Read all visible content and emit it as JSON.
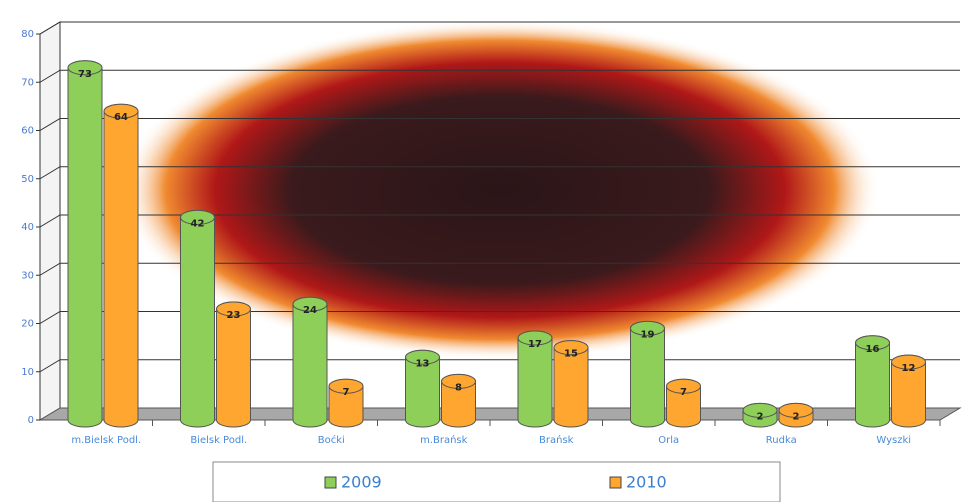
{
  "chart_data": {
    "type": "bar",
    "categories": [
      "m.Bielsk Podl.",
      "Bielsk Podl.",
      "Boćki",
      "m.Brańsk",
      "Brańsk",
      "Orla",
      "Rudka",
      "Wyszki"
    ],
    "series": [
      {
        "name": "2009",
        "color": "#8ecf5a",
        "values": [
          73,
          42,
          24,
          13,
          17,
          19,
          2,
          16
        ]
      },
      {
        "name": "2010",
        "color": "#ffa630",
        "values": [
          64,
          23,
          7,
          8,
          15,
          7,
          2,
          12
        ]
      }
    ],
    "ylim": [
      0,
      80
    ],
    "yticks": [
      0,
      10,
      20,
      30,
      40,
      50,
      60,
      70,
      80
    ],
    "grid": true,
    "legend": "bottom"
  }
}
